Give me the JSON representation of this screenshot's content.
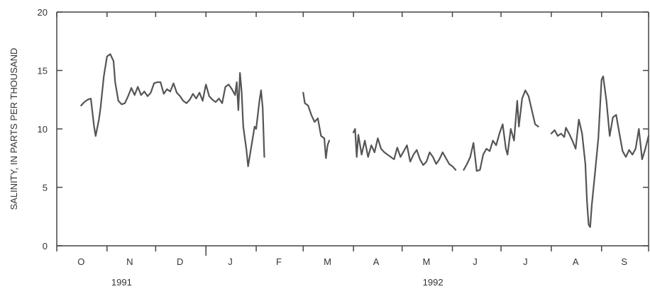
{
  "chart_data": {
    "type": "line",
    "title": "",
    "xlabel": "",
    "ylabel": "SALINITY, IN PARTS PER THOUSAND",
    "ylim": [
      0,
      20
    ],
    "yticks": [
      0,
      5,
      10,
      15,
      20
    ],
    "xlim": [
      "1991-10-01",
      "1992-09-30"
    ],
    "month_labels": [
      "O",
      "N",
      "D",
      "J",
      "F",
      "M",
      "A",
      "M",
      "J",
      "J",
      "A",
      "S"
    ],
    "month_label_dates": [
      "1991-10-16",
      "1991-11-15",
      "1991-12-16",
      "1992-01-16",
      "1992-02-15",
      "1992-03-16",
      "1992-04-15",
      "1992-05-16",
      "1992-06-15",
      "1992-07-16",
      "1992-08-16",
      "1992-09-15"
    ],
    "month_boundaries": [
      "1991-10-01",
      "1991-11-01",
      "1991-12-01",
      "1992-01-01",
      "1992-02-01",
      "1992-03-01",
      "1992-04-01",
      "1992-05-01",
      "1992-06-01",
      "1992-07-01",
      "1992-08-01",
      "1992-09-01",
      "1992-09-30"
    ],
    "year_labels": [
      {
        "text": "1991",
        "date": "1991-11-10"
      },
      {
        "text": "1992",
        "date": "1992-05-20"
      }
    ],
    "year_divider": "1992-01-01",
    "grid": false,
    "line_color": "#555555",
    "series": [
      {
        "segments": [
          [
            [
              "1991-10-16",
              12.0
            ],
            [
              "1991-10-18",
              12.3
            ],
            [
              "1991-10-20",
              12.5
            ],
            [
              "1991-10-22",
              12.6
            ],
            [
              "1991-10-24",
              10.2
            ],
            [
              "1991-10-25",
              9.4
            ],
            [
              "1991-10-27",
              10.8
            ],
            [
              "1991-10-28",
              11.8
            ],
            [
              "1991-10-30",
              14.5
            ],
            [
              "1991-11-01",
              16.2
            ],
            [
              "1991-11-03",
              16.4
            ],
            [
              "1991-11-05",
              15.8
            ],
            [
              "1991-11-06",
              14.0
            ],
            [
              "1991-11-08",
              12.4
            ],
            [
              "1991-11-10",
              12.1
            ],
            [
              "1991-11-12",
              12.2
            ],
            [
              "1991-11-14",
              12.8
            ],
            [
              "1991-11-16",
              13.5
            ],
            [
              "1991-11-18",
              12.9
            ],
            [
              "1991-11-20",
              13.6
            ],
            [
              "1991-11-22",
              12.9
            ],
            [
              "1991-11-24",
              13.2
            ],
            [
              "1991-11-26",
              12.8
            ],
            [
              "1991-11-28",
              13.1
            ],
            [
              "1991-11-30",
              13.9
            ],
            [
              "1991-12-02",
              14.0
            ],
            [
              "1991-12-04",
              14.0
            ],
            [
              "1991-12-06",
              13.0
            ],
            [
              "1991-12-08",
              13.4
            ],
            [
              "1991-12-10",
              13.2
            ],
            [
              "1991-12-12",
              13.9
            ],
            [
              "1991-12-14",
              13.1
            ],
            [
              "1991-12-16",
              12.8
            ],
            [
              "1991-12-18",
              12.4
            ],
            [
              "1991-12-20",
              12.2
            ],
            [
              "1991-12-22",
              12.5
            ],
            [
              "1991-12-24",
              13.0
            ],
            [
              "1991-12-26",
              12.6
            ],
            [
              "1991-12-28",
              13.1
            ],
            [
              "1991-12-30",
              12.4
            ],
            [
              "1992-01-01",
              13.8
            ],
            [
              "1992-01-03",
              12.8
            ],
            [
              "1992-01-05",
              12.5
            ],
            [
              "1992-01-07",
              12.3
            ],
            [
              "1992-01-09",
              12.6
            ],
            [
              "1992-01-11",
              12.2
            ],
            [
              "1992-01-13",
              13.6
            ],
            [
              "1992-01-15",
              13.8
            ],
            [
              "1992-01-17",
              13.4
            ],
            [
              "1992-01-19",
              12.9
            ],
            [
              "1992-01-20",
              14.0
            ],
            [
              "1992-01-21",
              11.6
            ],
            [
              "1992-01-22",
              14.8
            ],
            [
              "1992-01-23",
              13.2
            ],
            [
              "1992-01-24",
              10.2
            ],
            [
              "1992-01-26",
              8.2
            ],
            [
              "1992-01-27",
              6.8
            ],
            [
              "1992-01-29",
              8.5
            ],
            [
              "1992-01-31",
              10.2
            ],
            [
              "1992-02-01",
              10.0
            ],
            [
              "1992-02-03",
              12.4
            ],
            [
              "1992-02-04",
              13.3
            ],
            [
              "1992-02-05",
              11.8
            ],
            [
              "1992-02-06",
              7.6
            ]
          ],
          [
            [
              "1992-03-01",
              13.1
            ],
            [
              "1992-03-02",
              12.2
            ],
            [
              "1992-03-04",
              12.0
            ],
            [
              "1992-03-06",
              11.2
            ],
            [
              "1992-03-08",
              10.6
            ],
            [
              "1992-03-10",
              10.9
            ],
            [
              "1992-03-12",
              9.4
            ],
            [
              "1992-03-14",
              9.2
            ],
            [
              "1992-03-15",
              7.5
            ],
            [
              "1992-03-16",
              8.6
            ],
            [
              "1992-03-17",
              9.0
            ]
          ],
          [
            [
              "1992-04-01",
              9.7
            ],
            [
              "1992-04-02",
              10.0
            ],
            [
              "1992-04-03",
              7.6
            ],
            [
              "1992-04-04",
              9.5
            ],
            [
              "1992-04-06",
              7.8
            ],
            [
              "1992-04-08",
              9.0
            ],
            [
              "1992-04-10",
              7.6
            ],
            [
              "1992-04-12",
              8.6
            ],
            [
              "1992-04-14",
              8.0
            ],
            [
              "1992-04-16",
              9.2
            ],
            [
              "1992-04-18",
              8.3
            ],
            [
              "1992-04-20",
              8.0
            ],
            [
              "1992-04-22",
              7.8
            ],
            [
              "1992-04-24",
              7.6
            ],
            [
              "1992-04-26",
              7.4
            ],
            [
              "1992-04-28",
              8.4
            ],
            [
              "1992-04-30",
              7.6
            ],
            [
              "1992-05-02",
              8.1
            ],
            [
              "1992-05-04",
              8.6
            ],
            [
              "1992-05-06",
              7.2
            ],
            [
              "1992-05-08",
              7.8
            ],
            [
              "1992-05-10",
              8.2
            ],
            [
              "1992-05-12",
              7.4
            ],
            [
              "1992-05-14",
              6.9
            ],
            [
              "1992-05-16",
              7.2
            ],
            [
              "1992-05-18",
              8.0
            ],
            [
              "1992-05-20",
              7.6
            ],
            [
              "1992-05-22",
              7.0
            ],
            [
              "1992-05-24",
              7.4
            ],
            [
              "1992-05-26",
              8.0
            ],
            [
              "1992-05-28",
              7.5
            ],
            [
              "1992-05-30",
              7.0
            ],
            [
              "1992-06-01",
              6.8
            ],
            [
              "1992-06-03",
              6.5
            ]
          ],
          [
            [
              "1992-06-08",
              6.5
            ],
            [
              "1992-06-10",
              7.0
            ],
            [
              "1992-06-12",
              7.6
            ],
            [
              "1992-06-14",
              8.8
            ],
            [
              "1992-06-16",
              6.4
            ],
            [
              "1992-06-18",
              6.5
            ],
            [
              "1992-06-20",
              7.8
            ],
            [
              "1992-06-22",
              8.3
            ],
            [
              "1992-06-24",
              8.1
            ],
            [
              "1992-06-26",
              9.0
            ],
            [
              "1992-06-28",
              8.6
            ],
            [
              "1992-06-30",
              9.6
            ],
            [
              "1992-07-02",
              10.4
            ],
            [
              "1992-07-04",
              8.3
            ],
            [
              "1992-07-05",
              7.8
            ],
            [
              "1992-07-07",
              10.0
            ],
            [
              "1992-07-09",
              9.0
            ],
            [
              "1992-07-11",
              12.4
            ],
            [
              "1992-07-12",
              10.2
            ],
            [
              "1992-07-14",
              12.6
            ],
            [
              "1992-07-16",
              13.3
            ],
            [
              "1992-07-18",
              12.8
            ],
            [
              "1992-07-20",
              11.6
            ],
            [
              "1992-07-22",
              10.4
            ],
            [
              "1992-07-24",
              10.2
            ]
          ],
          [
            [
              "1992-08-01",
              9.6
            ],
            [
              "1992-08-03",
              9.9
            ],
            [
              "1992-08-05",
              9.4
            ],
            [
              "1992-08-07",
              9.6
            ],
            [
              "1992-08-09",
              9.3
            ],
            [
              "1992-08-10",
              10.1
            ],
            [
              "1992-08-12",
              9.6
            ],
            [
              "1992-08-14",
              9.0
            ],
            [
              "1992-08-16",
              8.3
            ],
            [
              "1992-08-18",
              10.8
            ],
            [
              "1992-08-20",
              9.6
            ],
            [
              "1992-08-22",
              7.0
            ],
            [
              "1992-08-23",
              3.8
            ],
            [
              "1992-08-24",
              1.8
            ],
            [
              "1992-08-25",
              1.6
            ],
            [
              "1992-08-26",
              3.5
            ],
            [
              "1992-08-28",
              6.3
            ],
            [
              "1992-08-30",
              9.2
            ],
            [
              "1992-09-01",
              14.2
            ],
            [
              "1992-09-02",
              14.5
            ],
            [
              "1992-09-04",
              12.4
            ],
            [
              "1992-09-06",
              9.4
            ],
            [
              "1992-09-08",
              11.0
            ],
            [
              "1992-09-10",
              11.2
            ],
            [
              "1992-09-12",
              9.6
            ],
            [
              "1992-09-14",
              8.1
            ],
            [
              "1992-09-16",
              7.6
            ],
            [
              "1992-09-18",
              8.2
            ],
            [
              "1992-09-20",
              7.8
            ],
            [
              "1992-09-22",
              8.3
            ],
            [
              "1992-09-24",
              10.0
            ],
            [
              "1992-09-26",
              7.4
            ],
            [
              "1992-09-28",
              8.3
            ],
            [
              "1992-09-30",
              9.4
            ]
          ]
        ]
      }
    ]
  }
}
